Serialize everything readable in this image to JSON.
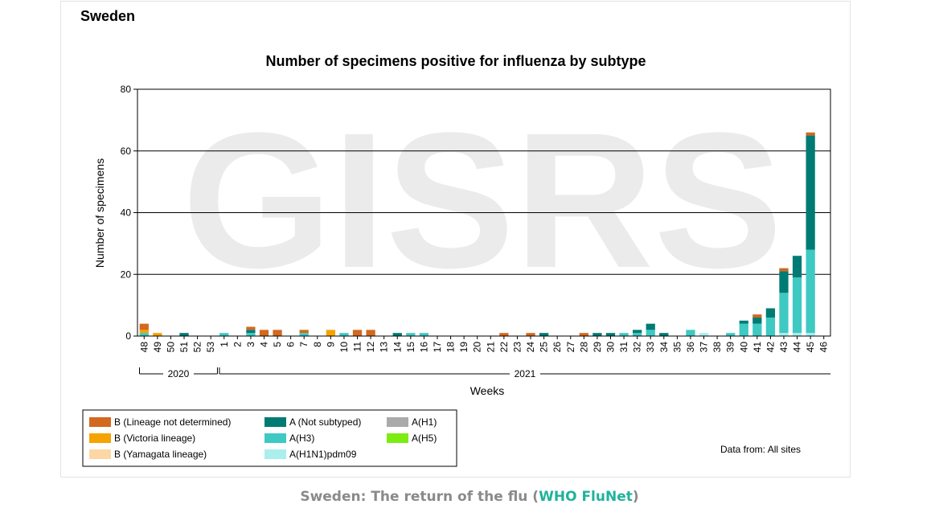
{
  "header": {
    "country": "Sweden"
  },
  "caption": {
    "text": "Sweden: The return of the flu (",
    "link": "WHO FluNet",
    "end": ")"
  },
  "colors": {
    "b_lineage_nd": "#d2691e",
    "b_victoria": "#f5a300",
    "b_yamagata": "#fdd7a3",
    "a_not_subtyped": "#007b74",
    "a_h3": "#3ec9c3",
    "a_h1n1pdm09": "#aaeeee",
    "a_h1": "#aaaaaa",
    "a_h5": "#7cec12",
    "watermark": "#ebebeb"
  },
  "chart_data": {
    "type": "bar",
    "stacked": true,
    "title": "Number of specimens positive for influenza by subtype",
    "xlabel": "Weeks",
    "ylabel": "Number of specimens",
    "ylim": [
      0,
      80
    ],
    "yticks": [
      0,
      20,
      40,
      60,
      80
    ],
    "grid": true,
    "watermark": "GISRS",
    "source_note": "Data from: All sites",
    "categories": [
      "48",
      "49",
      "50",
      "51",
      "52",
      "53",
      "1",
      "2",
      "3",
      "4",
      "5",
      "6",
      "7",
      "8",
      "9",
      "10",
      "11",
      "12",
      "13",
      "14",
      "15",
      "16",
      "17",
      "18",
      "19",
      "20",
      "21",
      "22",
      "23",
      "24",
      "25",
      "26",
      "27",
      "28",
      "29",
      "30",
      "31",
      "32",
      "33",
      "34",
      "35",
      "36",
      "37",
      "38",
      "39",
      "40",
      "41",
      "42",
      "43",
      "44",
      "45",
      "46"
    ],
    "year_groups": [
      {
        "label": "2020",
        "from": "48",
        "to": "53"
      },
      {
        "label": "2021",
        "from": "1",
        "to": "46"
      }
    ],
    "series": [
      {
        "name": "B (Lineage not determined)",
        "key": "b_lineage_nd",
        "values": [
          2,
          0,
          0,
          0,
          0,
          0,
          0,
          0,
          1,
          2,
          2,
          0,
          1,
          0,
          0,
          0,
          2,
          2,
          0,
          0,
          0,
          0,
          0,
          0,
          0,
          0,
          0,
          1,
          0,
          1,
          0,
          0,
          0,
          1,
          0,
          0,
          0,
          0,
          0,
          0,
          0,
          0,
          0,
          0,
          0,
          0,
          1,
          0,
          1,
          0,
          1,
          0
        ]
      },
      {
        "name": "B (Victoria lineage)",
        "key": "b_victoria",
        "values": [
          1,
          1,
          0,
          0,
          0,
          0,
          0,
          0,
          0,
          0,
          0,
          0,
          0,
          0,
          2,
          0,
          0,
          0,
          0,
          0,
          0,
          0,
          0,
          0,
          0,
          0,
          0,
          0,
          0,
          0,
          0,
          0,
          0,
          0,
          0,
          0,
          0,
          0,
          0,
          0,
          0,
          0,
          0,
          0,
          0,
          0,
          0,
          0,
          0,
          0,
          0,
          0
        ]
      },
      {
        "name": "B (Yamagata lineage)",
        "key": "b_yamagata",
        "values": [
          0,
          0,
          0,
          0,
          0,
          0,
          0,
          0,
          0,
          0,
          0,
          0,
          0,
          0,
          0,
          0,
          0,
          0,
          0,
          0,
          0,
          0,
          0,
          0,
          0,
          0,
          0,
          0,
          0,
          0,
          0,
          0,
          0,
          0,
          0,
          0,
          0,
          0,
          0,
          0,
          0,
          0,
          0,
          0,
          0,
          0,
          0,
          0,
          0,
          0,
          0,
          0
        ]
      },
      {
        "name": "A (Not subtyped)",
        "key": "a_not_subtyped",
        "values": [
          0,
          0,
          0,
          1,
          0,
          0,
          0,
          0,
          1,
          0,
          0,
          0,
          0,
          0,
          0,
          0,
          0,
          0,
          0,
          1,
          0,
          0,
          0,
          0,
          0,
          0,
          0,
          0,
          0,
          0,
          1,
          0,
          0,
          0,
          1,
          1,
          0,
          1,
          2,
          1,
          0,
          0,
          0,
          0,
          0,
          1,
          2,
          3,
          7,
          7,
          37,
          0
        ]
      },
      {
        "name": "A(H3)",
        "key": "a_h3",
        "values": [
          1,
          0,
          0,
          0,
          0,
          0,
          1,
          0,
          1,
          0,
          0,
          0,
          1,
          0,
          0,
          1,
          0,
          0,
          0,
          0,
          1,
          1,
          0,
          0,
          0,
          0,
          0,
          0,
          0,
          0,
          0,
          0,
          0,
          0,
          0,
          0,
          1,
          1,
          2,
          0,
          0,
          2,
          0,
          0,
          1,
          4,
          4,
          6,
          13,
          18,
          27,
          0
        ]
      },
      {
        "name": "A(H1N1)pdm09",
        "key": "a_h1n1pdm09",
        "values": [
          0,
          0,
          0,
          0,
          0,
          0,
          0,
          0,
          0,
          0,
          0,
          0,
          0,
          0,
          0,
          0,
          0,
          0,
          0,
          0,
          0,
          0,
          0,
          0,
          0,
          0,
          0,
          0,
          0,
          0,
          0,
          0,
          0,
          0,
          0,
          0,
          0,
          0,
          0,
          0,
          0,
          0,
          1,
          0,
          0,
          0,
          0,
          0,
          1,
          1,
          1,
          0
        ]
      },
      {
        "name": "A(H1)",
        "key": "a_h1",
        "values": [
          0,
          0,
          0,
          0,
          0,
          0,
          0,
          0,
          0,
          0,
          0,
          0,
          0,
          0,
          0,
          0,
          0,
          0,
          0,
          0,
          0,
          0,
          0,
          0,
          0,
          0,
          0,
          0,
          0,
          0,
          0,
          0,
          0,
          0,
          0,
          0,
          0,
          0,
          0,
          0,
          0,
          0,
          0,
          0,
          0,
          0,
          0,
          0,
          0,
          0,
          0,
          0
        ]
      },
      {
        "name": "A(H5)",
        "key": "a_h5",
        "values": [
          0,
          0,
          0,
          0,
          0,
          0,
          0,
          0,
          0,
          0,
          0,
          0,
          0,
          0,
          0,
          0,
          0,
          0,
          0,
          0,
          0,
          0,
          0,
          0,
          0,
          0,
          0,
          0,
          0,
          0,
          0,
          0,
          0,
          0,
          0,
          0,
          0,
          0,
          0,
          0,
          0,
          0,
          0,
          0,
          0,
          0,
          0,
          0,
          0,
          0,
          0,
          0
        ]
      }
    ],
    "stack_order": [
      "a_h1n1pdm09",
      "a_h3",
      "a_not_subtyped",
      "a_h1",
      "a_h5",
      "b_yamagata",
      "b_victoria",
      "b_lineage_nd"
    ],
    "legend_order": [
      "b_lineage_nd",
      "b_victoria",
      "b_yamagata",
      "a_not_subtyped",
      "a_h3",
      "a_h1n1pdm09",
      "a_h1",
      "a_h5"
    ],
    "legend_placement": "bottom-left"
  }
}
